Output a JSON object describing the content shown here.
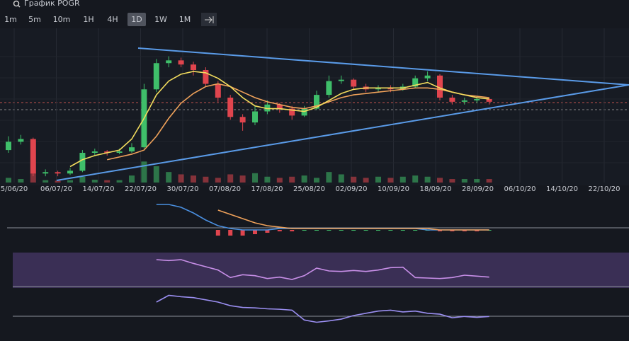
{
  "toolbar": {
    "title": "График POGR",
    "intervals": [
      "1m",
      "5m",
      "10m",
      "1H",
      "4H",
      "1D",
      "1W",
      "1M"
    ],
    "active": "1D"
  },
  "chart_data": {
    "type": "candlestick",
    "x_labels": [
      "5/06/20",
      "06/07/20",
      "14/07/20",
      "22/07/20",
      "30/07/20",
      "07/08/20",
      "17/08/20",
      "25/08/20",
      "02/09/20",
      "10/09/20",
      "18/09/20",
      "28/09/20",
      "06/10/20",
      "14/10/20",
      "22/10/20"
    ],
    "ylim": [
      0,
      100
    ],
    "up_color": "#3fbf6a",
    "down_color": "#e0454e",
    "candles": [
      [
        22,
        32,
        20,
        28
      ],
      [
        28,
        33,
        26,
        30
      ],
      [
        30,
        31,
        3,
        5
      ],
      [
        5,
        8,
        3,
        6
      ],
      [
        6,
        7,
        3,
        5
      ],
      [
        5,
        9,
        4,
        7
      ],
      [
        7,
        22,
        6,
        20
      ],
      [
        20,
        23,
        18,
        21
      ],
      [
        21,
        22,
        18,
        20
      ],
      [
        20,
        23,
        19,
        21
      ],
      [
        21,
        27,
        20,
        24
      ],
      [
        24,
        70,
        23,
        66
      ],
      [
        66,
        88,
        64,
        85
      ],
      [
        85,
        90,
        82,
        87
      ],
      [
        87,
        89,
        82,
        84
      ],
      [
        84,
        86,
        76,
        80
      ],
      [
        80,
        82,
        68,
        70
      ],
      [
        70,
        72,
        57,
        60
      ],
      [
        60,
        62,
        44,
        46
      ],
      [
        46,
        48,
        36,
        42
      ],
      [
        42,
        54,
        40,
        50
      ],
      [
        50,
        58,
        48,
        55
      ],
      [
        55,
        56,
        49,
        52
      ],
      [
        52,
        54,
        44,
        47
      ],
      [
        47,
        54,
        46,
        52
      ],
      [
        52,
        65,
        51,
        62
      ],
      [
        62,
        76,
        60,
        72
      ],
      [
        72,
        76,
        70,
        73
      ],
      [
        73,
        74,
        66,
        68
      ],
      [
        68,
        70,
        64,
        66
      ],
      [
        66,
        69,
        64,
        67
      ],
      [
        67,
        69,
        64,
        66
      ],
      [
        66,
        70,
        65,
        68
      ],
      [
        68,
        76,
        67,
        74
      ],
      [
        74,
        79,
        72,
        76
      ],
      [
        76,
        77,
        58,
        60
      ],
      [
        60,
        62,
        55,
        57
      ],
      [
        57,
        60,
        55,
        58
      ],
      [
        58,
        61,
        56,
        59
      ],
      [
        59,
        60,
        55,
        57
      ]
    ],
    "ma_fast": {
      "color": "#f2dc5d",
      "values": [
        null,
        null,
        null,
        null,
        null,
        10,
        15,
        18,
        20,
        22,
        30,
        45,
        62,
        72,
        77,
        79,
        78,
        74,
        68,
        60,
        54,
        52,
        52,
        51,
        50,
        53,
        58,
        63,
        66,
        67,
        67,
        67,
        67,
        69,
        71,
        67,
        64,
        62,
        60,
        59
      ]
    },
    "ma_slow": {
      "color": "#f0a25a",
      "values": [
        null,
        null,
        null,
        null,
        null,
        null,
        null,
        null,
        15,
        17,
        19,
        22,
        32,
        45,
        56,
        63,
        68,
        70,
        68,
        64,
        60,
        57,
        55,
        53,
        52,
        54,
        57,
        60,
        62,
        63,
        64,
        65,
        66,
        67,
        67,
        66,
        64,
        62,
        61,
        60
      ]
    },
    "volume": {
      "ylim": [
        0,
        100
      ],
      "values": [
        20,
        15,
        40,
        10,
        8,
        10,
        25,
        12,
        10,
        10,
        30,
        90,
        70,
        45,
        35,
        30,
        25,
        20,
        35,
        30,
        40,
        25,
        20,
        25,
        30,
        20,
        45,
        35,
        25,
        20,
        25,
        20,
        25,
        30,
        25,
        20,
        15,
        15,
        15,
        15
      ]
    },
    "macd": {
      "ylim": [
        -6,
        20
      ],
      "line": {
        "color": "#4a8fe0",
        "values": [
          null,
          null,
          null,
          null,
          null,
          null,
          null,
          null,
          null,
          null,
          null,
          null,
          18,
          18,
          16,
          12,
          7,
          3,
          1,
          0,
          0,
          0,
          1,
          1,
          1,
          1,
          1,
          1,
          1,
          1,
          1,
          1,
          1,
          1,
          0,
          0,
          0,
          0,
          0,
          0
        ]
      },
      "signal": {
        "color": "#f0a25a",
        "values": [
          null,
          null,
          null,
          null,
          null,
          null,
          null,
          null,
          null,
          null,
          null,
          null,
          null,
          null,
          null,
          null,
          null,
          14,
          11,
          8,
          5,
          3,
          2,
          1,
          1,
          1,
          1,
          1,
          1,
          1,
          1,
          1,
          1,
          1,
          1,
          0,
          0,
          0,
          0,
          0
        ]
      },
      "hist": [
        null,
        null,
        null,
        null,
        null,
        null,
        null,
        null,
        null,
        null,
        null,
        null,
        null,
        null,
        null,
        null,
        null,
        -4,
        -4,
        -4,
        -3,
        -2,
        -1,
        -1,
        0,
        0,
        0,
        0,
        0,
        0,
        0,
        0,
        0,
        0,
        0,
        -1,
        -1,
        -1,
        -1,
        0
      ]
    },
    "rsi": {
      "ylim": [
        20,
        95
      ],
      "color": "#c88fe8",
      "values": [
        null,
        null,
        null,
        null,
        null,
        null,
        null,
        null,
        null,
        null,
        null,
        null,
        80,
        78,
        80,
        72,
        65,
        58,
        42,
        48,
        46,
        40,
        43,
        38,
        46,
        62,
        56,
        55,
        57,
        55,
        58,
        63,
        64,
        42,
        41,
        40,
        42,
        47,
        45,
        43
      ]
    },
    "osc": {
      "ylim": [
        10,
        100
      ],
      "color": "#9a8ef0",
      "values": [
        null,
        null,
        null,
        null,
        null,
        null,
        null,
        null,
        null,
        null,
        null,
        null,
        70,
        85,
        82,
        80,
        75,
        70,
        62,
        58,
        57,
        55,
        54,
        52,
        30,
        25,
        28,
        32,
        40,
        45,
        50,
        52,
        48,
        50,
        45,
        43,
        35,
        38,
        36,
        38
      ]
    }
  }
}
